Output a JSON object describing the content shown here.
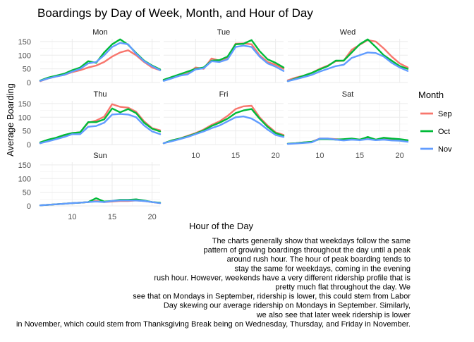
{
  "chart_data": {
    "type": "line",
    "title": "Boardings by Day of Week, Month, and Hour of Day",
    "xlabel": "Hour of the Day",
    "ylabel": "Average Boarding",
    "xlim": [
      6,
      21
    ],
    "ylim": [
      0,
      160
    ],
    "x_ticks": [
      10,
      15,
      20
    ],
    "y_ticks": [
      0,
      50,
      100,
      150
    ],
    "grid": true,
    "legend": {
      "title": "Month",
      "position": "right",
      "items": [
        {
          "name": "Sep",
          "color": "#F8766D"
        },
        {
          "name": "Oct",
          "color": "#00BA38"
        },
        {
          "name": "Nov",
          "color": "#619CFF"
        }
      ]
    },
    "x": [
      6,
      7,
      8,
      9,
      10,
      11,
      12,
      13,
      14,
      15,
      16,
      17,
      18,
      19,
      20,
      21
    ],
    "facets": [
      {
        "label": "Mon",
        "series": [
          {
            "name": "Sep",
            "values": [
              5,
              15,
              22,
              28,
              38,
              45,
              55,
              62,
              75,
              95,
              110,
              118,
              100,
              75,
              55,
              45
            ]
          },
          {
            "name": "Oct",
            "values": [
              7,
              18,
              25,
              32,
              45,
              55,
              78,
              72,
              110,
              140,
              158,
              138,
              108,
              80,
              62,
              48
            ]
          },
          {
            "name": "Nov",
            "values": [
              6,
              15,
              22,
              28,
              40,
              50,
              70,
              75,
              100,
              130,
              145,
              140,
              105,
              78,
              60,
              45
            ]
          }
        ]
      },
      {
        "label": "Tue",
        "series": [
          {
            "name": "Sep",
            "values": [
              8,
              18,
              25,
              32,
              55,
              50,
              88,
              80,
              90,
              142,
              143,
              140,
              100,
              75,
              65,
              50
            ]
          },
          {
            "name": "Oct",
            "values": [
              10,
              20,
              30,
              40,
              50,
              55,
              80,
              82,
              95,
              140,
              142,
              155,
              115,
              85,
              72,
              55
            ]
          },
          {
            "name": "Nov",
            "values": [
              6,
              15,
              25,
              30,
              48,
              52,
              78,
              75,
              85,
              130,
              135,
              130,
              95,
              70,
              58,
              42
            ]
          }
        ]
      },
      {
        "label": "Wed",
        "series": [
          {
            "name": "Sep",
            "values": [
              8,
              18,
              25,
              35,
              50,
              62,
              78,
              80,
              120,
              138,
              155,
              150,
              125,
              95,
              70,
              55
            ]
          },
          {
            "name": "Oct",
            "values": [
              5,
              15,
              25,
              35,
              48,
              60,
              80,
              80,
              110,
              140,
              158,
              130,
              100,
              80,
              60,
              50
            ]
          },
          {
            "name": "Nov",
            "values": [
              5,
              12,
              20,
              28,
              40,
              50,
              60,
              65,
              90,
              100,
              110,
              108,
              95,
              72,
              55,
              42
            ]
          }
        ]
      },
      {
        "label": "Thu",
        "series": [
          {
            "name": "Sep",
            "values": [
              5,
              15,
              22,
              32,
              42,
              45,
              80,
              88,
              102,
              148,
              138,
              135,
              120,
              85,
              60,
              52
            ]
          },
          {
            "name": "Oct",
            "values": [
              8,
              18,
              25,
              35,
              42,
              45,
              82,
              82,
              92,
              132,
              118,
              130,
              115,
              80,
              58,
              48
            ]
          },
          {
            "name": "Nov",
            "values": [
              5,
              12,
              20,
              28,
              38,
              38,
              65,
              68,
              80,
              110,
              112,
              110,
              100,
              70,
              48,
              38
            ]
          }
        ]
      },
      {
        "label": "Fri",
        "series": [
          {
            "name": "Sep",
            "values": [
              5,
              15,
              22,
              32,
              42,
              55,
              72,
              85,
              105,
              130,
              140,
              142,
              100,
              70,
              45,
              35
            ]
          },
          {
            "name": "Oct",
            "values": [
              5,
              15,
              22,
              30,
              40,
              52,
              68,
              80,
              95,
              115,
              125,
              130,
              95,
              65,
              42,
              32
            ]
          },
          {
            "name": "Nov",
            "values": [
              5,
              12,
              20,
              28,
              38,
              48,
              60,
              70,
              85,
              100,
              103,
              95,
              78,
              55,
              35,
              28
            ]
          }
        ]
      },
      {
        "label": "Sat",
        "series": [
          {
            "name": "Sep",
            "values": [
              3,
              5,
              8,
              10,
              22,
              22,
              20,
              18,
              20,
              18,
              25,
              18,
              20,
              20,
              18,
              15
            ]
          },
          {
            "name": "Oct",
            "values": [
              3,
              5,
              8,
              10,
              20,
              20,
              18,
              20,
              22,
              18,
              28,
              18,
              25,
              22,
              20,
              16
            ]
          },
          {
            "name": "Nov",
            "values": [
              2,
              4,
              6,
              8,
              22,
              22,
              18,
              15,
              18,
              16,
              20,
              16,
              18,
              15,
              14,
              10
            ]
          }
        ]
      },
      {
        "label": "Sun",
        "series": [
          {
            "name": "Sep",
            "values": [
              2,
              4,
              6,
              8,
              10,
              12,
              14,
              18,
              14,
              16,
              18,
              18,
              20,
              18,
              14,
              10
            ]
          },
          {
            "name": "Oct",
            "values": [
              2,
              4,
              6,
              8,
              10,
              12,
              14,
              28,
              16,
              18,
              22,
              22,
              24,
              20,
              14,
              12
            ]
          },
          {
            "name": "Nov",
            "values": [
              2,
              4,
              6,
              8,
              10,
              12,
              14,
              16,
              14,
              18,
              20,
              20,
              20,
              18,
              14,
              10
            ]
          }
        ]
      }
    ]
  },
  "caption": "The charts generally show that weekdays follow the same pattern of growing boardings throughout the day until a peak around rush hour. The hour of peak boarding tends to stay the same for weekdays, coming in the evening rush hour. However, weekends have a very different ridership profile that is pretty much flat throughout the day. We see that on Mondays in September, ridership is lower, this could stem from Labor Day skewing our average ridership on Mondays in September. Similarly, we also see that later week ridership is lower in November, which could stem from Thanksgiving Break being on Wednesday, Thursday, and Friday in November."
}
